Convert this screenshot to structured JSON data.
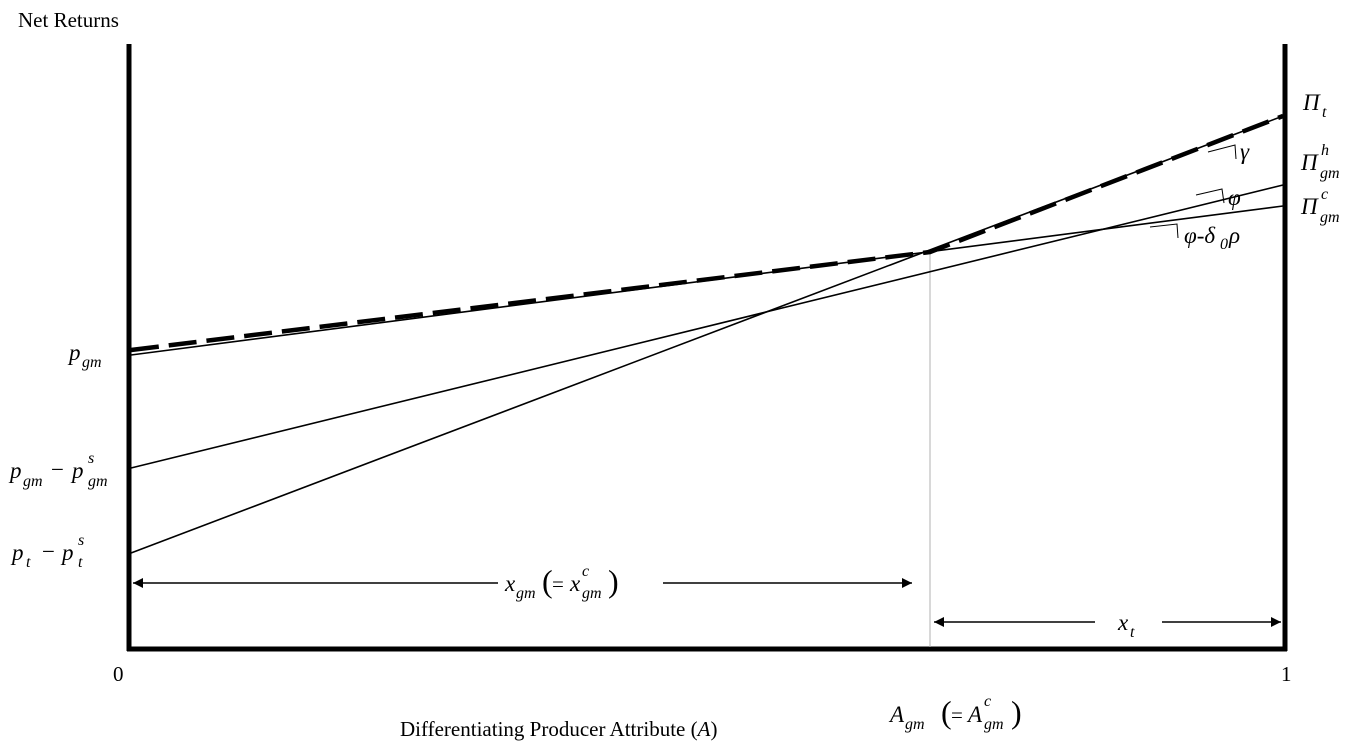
{
  "figure": {
    "y_axis_label": "Net Returns",
    "x_axis_label": "Differentiating Producer Attribute (",
    "x_axis_label_var": "A",
    "x_axis_label_close": ")",
    "x_origin_label": "0",
    "x_end_label": "1",
    "threshold_label": {
      "base": "A",
      "sub": "gm",
      "eq": "=",
      "inner_base": "A",
      "inner_sub": "gm",
      "inner_sup": "c"
    },
    "intercepts": [
      {
        "id": "pgm",
        "base": "p",
        "sub": "gm",
        "minus": "",
        "base2": "",
        "sub2": "",
        "sup2": ""
      },
      {
        "id": "pgm-minus-pgms",
        "base": "p",
        "sub": "gm",
        "minus": "−",
        "base2": "p",
        "sub2": "gm",
        "sup2": "s"
      },
      {
        "id": "pt-minus-pts",
        "base": "p",
        "sub": "t",
        "minus": "−",
        "base2": "p",
        "sub2": "t",
        "sup2": "s"
      }
    ],
    "line_end_labels": [
      {
        "id": "pi-t",
        "base": "Π",
        "sub": "t",
        "sup": ""
      },
      {
        "id": "pi-gm-h",
        "base": "Π",
        "sub": "gm",
        "sup": "h"
      },
      {
        "id": "pi-gm-c",
        "base": "Π",
        "sub": "gm",
        "sup": "c"
      }
    ],
    "slope_labels": [
      {
        "id": "gamma",
        "text": "γ"
      },
      {
        "id": "phi",
        "text": "φ"
      },
      {
        "id": "phi-minus-delta-rho",
        "text_a": "φ-δ",
        "sub": "0",
        "text_b": "ρ"
      }
    ],
    "range_labels": [
      {
        "id": "x-gm",
        "base": "x",
        "sub": "gm",
        "eq": "=",
        "inner_base": "x",
        "inner_sub": "gm",
        "inner_sup": "c"
      },
      {
        "id": "x-t",
        "base": "x",
        "sub": "t"
      }
    ]
  },
  "chart_data": {
    "type": "line",
    "title": "",
    "xlabel": "Differentiating Producer Attribute (A)",
    "ylabel": "Net Returns",
    "xlim": [
      0,
      1
    ],
    "x_ticks": [
      "0",
      "1"
    ],
    "threshold_x": 0.69,
    "series": [
      {
        "name": "Π_gm^c",
        "intercept_label": "p_gm",
        "y_at_0": 0.61,
        "y_at_1": 0.86
      },
      {
        "name": "Π_gm^h",
        "intercept_label": "p_gm − p_gm^s",
        "y_at_0": 0.33,
        "y_at_1": 0.9
      },
      {
        "name": "Π_t",
        "intercept_label": "p_t − p_t^s",
        "y_at_0": 0.19,
        "y_at_1": 1.0
      },
      {
        "name": "upper envelope",
        "style": "dashed",
        "points": [
          [
            0,
            0.62
          ],
          [
            0.69,
            0.78
          ],
          [
            1,
            1.0
          ]
        ]
      }
    ],
    "grid": false,
    "legend": "none"
  }
}
